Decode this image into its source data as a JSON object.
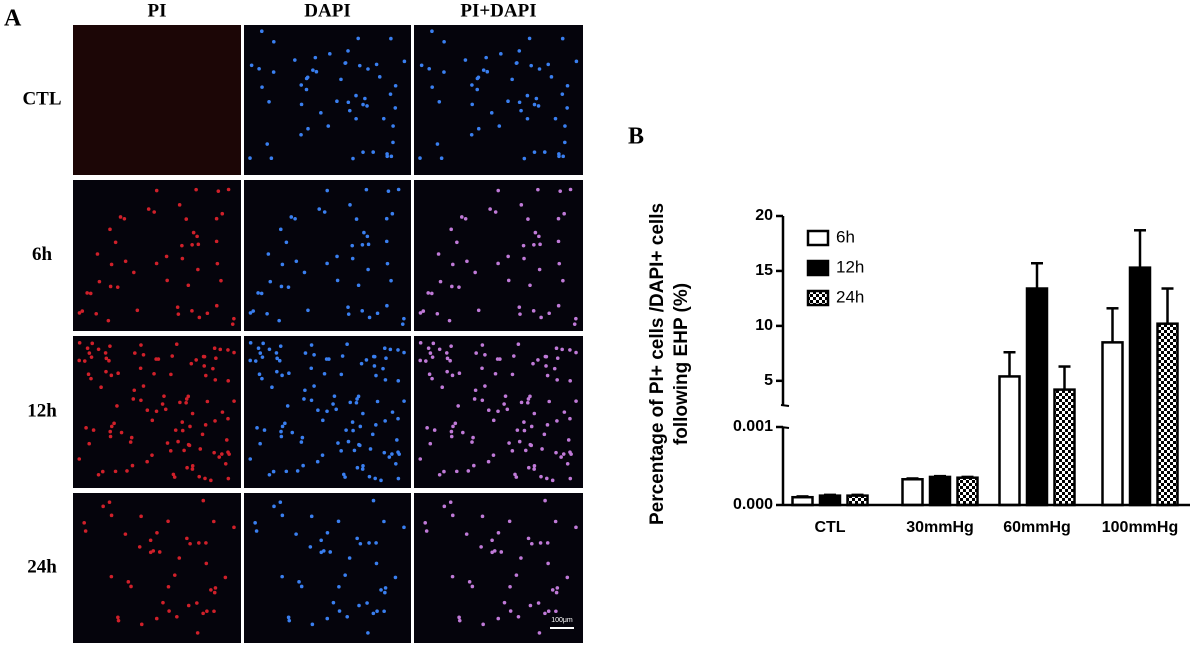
{
  "panel_a": {
    "label": "A",
    "columns": [
      "PI",
      "DAPI",
      "PI+DAPI"
    ],
    "rows": [
      "CTL",
      "6h",
      "12h",
      "24h"
    ],
    "scale_bar": "100μm"
  },
  "chart_data": {
    "type": "bar",
    "panel_label": "B",
    "y_label": [
      "Percentage of PI+ cells /DAPI+ cells",
      "following EHP (%)"
    ],
    "categories": [
      "CTL",
      "30mmHg",
      "60mmHg",
      "100mmHg"
    ],
    "series": [
      {
        "name": "6h",
        "color": "#ffffff",
        "values": [
          0.0001,
          0.00033,
          5.4,
          8.5
        ],
        "errors": [
          1e-05,
          1e-05,
          2.2,
          3.1
        ]
      },
      {
        "name": "12h",
        "color": "#000000",
        "values": [
          0.00012,
          0.00036,
          13.4,
          15.3
        ],
        "errors": [
          1e-05,
          1e-05,
          2.3,
          3.4
        ]
      },
      {
        "name": "24h",
        "color": "#000000",
        "pattern": "checkerboard",
        "values": [
          0.00012,
          0.00035,
          4.2,
          10.2
        ],
        "errors": [
          1e-05,
          1e-05,
          2.1,
          3.2
        ]
      }
    ],
    "ylim_lower": [
      0,
      0.001
    ],
    "yticks_lower": [
      {
        "value": 0,
        "label": "0.000"
      },
      {
        "value": 0.001,
        "label": "0.001"
      }
    ],
    "ylim_upper": [
      2.8,
      20
    ],
    "yticks_upper": [
      5,
      10,
      15,
      20
    ],
    "legend": "upper left"
  }
}
